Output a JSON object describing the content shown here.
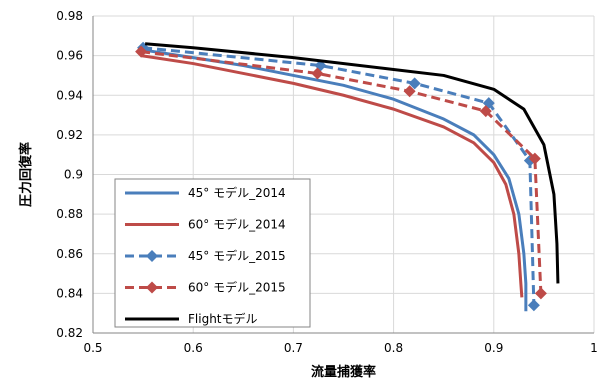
{
  "chart_data": {
    "type": "line",
    "title": "",
    "xlabel": "流量捕獲率",
    "ylabel": "圧力回復率",
    "xlim": [
      0.5,
      1.0
    ],
    "ylim": [
      0.82,
      0.98
    ],
    "x_ticks": [
      "0.5",
      "0.6",
      "0.7",
      "0.8",
      "0.9",
      "1"
    ],
    "y_ticks": [
      "0.82",
      "0.84",
      "0.86",
      "0.88",
      "0.9",
      "0.92",
      "0.94",
      "0.96",
      "0.98"
    ],
    "grid": true,
    "legend_position": "bottom-left",
    "series": [
      {
        "name": "45° モデル_2014",
        "color": "#4a7ebb",
        "dash": "solid",
        "marker": "none",
        "points": [
          [
            0.548,
            0.963
          ],
          [
            0.6,
            0.959
          ],
          [
            0.65,
            0.955
          ],
          [
            0.7,
            0.95
          ],
          [
            0.75,
            0.945
          ],
          [
            0.8,
            0.938
          ],
          [
            0.85,
            0.928
          ],
          [
            0.88,
            0.92
          ],
          [
            0.9,
            0.91
          ],
          [
            0.915,
            0.898
          ],
          [
            0.925,
            0.88
          ],
          [
            0.93,
            0.86
          ],
          [
            0.932,
            0.845
          ],
          [
            0.932,
            0.831
          ]
        ]
      },
      {
        "name": "60° モデル_2014",
        "color": "#be4b48",
        "dash": "solid",
        "marker": "none",
        "points": [
          [
            0.548,
            0.96
          ],
          [
            0.6,
            0.956
          ],
          [
            0.65,
            0.951
          ],
          [
            0.7,
            0.946
          ],
          [
            0.75,
            0.94
          ],
          [
            0.8,
            0.933
          ],
          [
            0.85,
            0.924
          ],
          [
            0.88,
            0.916
          ],
          [
            0.9,
            0.906
          ],
          [
            0.912,
            0.895
          ],
          [
            0.92,
            0.88
          ],
          [
            0.925,
            0.86
          ],
          [
            0.927,
            0.845
          ],
          [
            0.928,
            0.838
          ]
        ]
      },
      {
        "name": "45° モデル_2015",
        "color": "#4a7ebb",
        "dash": "dashed",
        "marker": "diamond",
        "points": [
          [
            0.55,
            0.964
          ],
          [
            0.727,
            0.955
          ],
          [
            0.821,
            0.946
          ],
          [
            0.895,
            0.936
          ],
          [
            0.936,
            0.907
          ],
          [
            0.94,
            0.834
          ]
        ]
      },
      {
        "name": "60° モデル_2015",
        "color": "#be4b48",
        "dash": "dashed",
        "marker": "diamond",
        "points": [
          [
            0.548,
            0.962
          ],
          [
            0.724,
            0.951
          ],
          [
            0.816,
            0.942
          ],
          [
            0.892,
            0.932
          ],
          [
            0.941,
            0.908
          ],
          [
            0.947,
            0.84
          ]
        ]
      },
      {
        "name": "Flightモデル",
        "color": "#000000",
        "dash": "solid",
        "marker": "none",
        "points": [
          [
            0.552,
            0.966
          ],
          [
            0.6,
            0.964
          ],
          [
            0.7,
            0.959
          ],
          [
            0.8,
            0.953
          ],
          [
            0.85,
            0.95
          ],
          [
            0.9,
            0.943
          ],
          [
            0.93,
            0.933
          ],
          [
            0.95,
            0.915
          ],
          [
            0.96,
            0.89
          ],
          [
            0.963,
            0.865
          ],
          [
            0.964,
            0.845
          ]
        ]
      }
    ]
  }
}
